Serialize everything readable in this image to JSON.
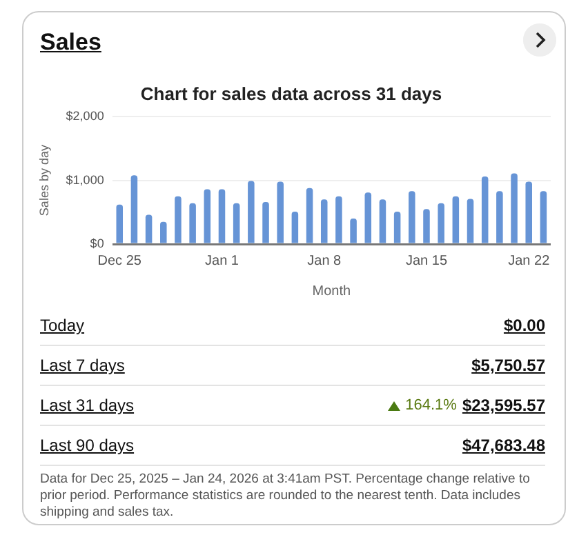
{
  "chart_data": {
    "type": "bar",
    "title": "Chart for sales data across 31 days",
    "xlabel": "Month",
    "ylabel": "Sales by day",
    "categories": [
      "Dec 25",
      null,
      null,
      null,
      null,
      null,
      null,
      "Jan 1",
      null,
      null,
      null,
      null,
      null,
      null,
      "Jan 8",
      null,
      null,
      null,
      null,
      null,
      null,
      "Jan 15",
      null,
      null,
      null,
      null,
      null,
      null,
      "Jan 22",
      null
    ],
    "values": [
      620,
      1080,
      460,
      350,
      750,
      640,
      860,
      860,
      640,
      990,
      660,
      980,
      510,
      880,
      700,
      750,
      400,
      810,
      700,
      510,
      830,
      550,
      640,
      750,
      710,
      1060,
      830,
      1110,
      980,
      830
    ],
    "color": "#6694d6",
    "ylim": [
      0,
      2000
    ],
    "yticks": [
      {
        "value": 0,
        "label": "$0"
      },
      {
        "value": 1000,
        "label": "$1,000"
      },
      {
        "value": 2000,
        "label": "$2,000"
      }
    ],
    "grid": "y",
    "legend": false,
    "annotations": [
      "Sales",
      "Today",
      "$0.00",
      "Last 7 days",
      "$5,750.57",
      "Last 31 days",
      "164.1%",
      "$23,595.57",
      "Last 90 days",
      "$47,683.48",
      "Data for Dec 25, 2025 – Jan 24, 2026 at 3:41am PST. Percentage change relative to prior period. Performance statistics are rounded to the nearest tenth. Data includes shipping and sales tax."
    ]
  }
}
